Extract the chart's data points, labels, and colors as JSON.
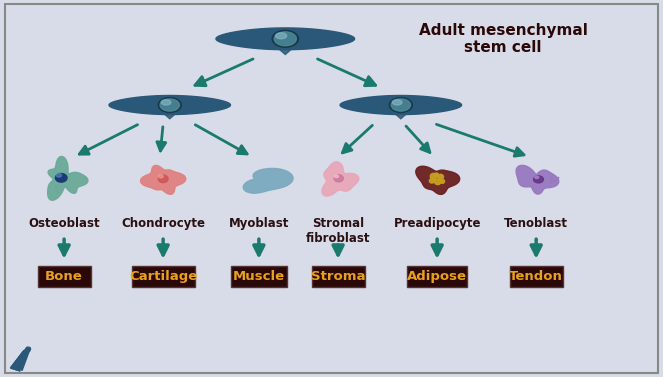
{
  "bg_color": "#d8dce8",
  "border_color": "#888888",
  "arrow_color": "#1a7a6e",
  "title_text": "Adult mesenchymal\nstem cell",
  "title_fontsize": 11,
  "cell_labels": [
    "Osteoblast",
    "Chondrocyte",
    "Myoblast",
    "Stromal\nfibroblast",
    "Preadipocyte",
    "Tenoblast"
  ],
  "tissue_labels": [
    "Bone",
    "Cartilage",
    "Muscle",
    "Stroma",
    "Adipose",
    "Tendon"
  ],
  "cell_colors": [
    "#6aaa98",
    "#e08080",
    "#7aaabf",
    "#e8a8b8",
    "#6b2020",
    "#9878c0"
  ],
  "cell_nucleus_colors": [
    "#1a3a78",
    "#cc5555",
    "#5588bb",
    "#cc7799",
    "#c8a020",
    "#663388"
  ],
  "stem_cell_color": "#2a5878",
  "stem_cell_nucleus": "#4a8898",
  "stem_cell_nucleus_dark": "#1a3848",
  "box_bg": "#2a0808",
  "box_text": "#e8a020",
  "box_border": "#553333",
  "label_color": "#2a1010",
  "label_fontsize": 8.5,
  "tissue_fontsize": 9.5
}
